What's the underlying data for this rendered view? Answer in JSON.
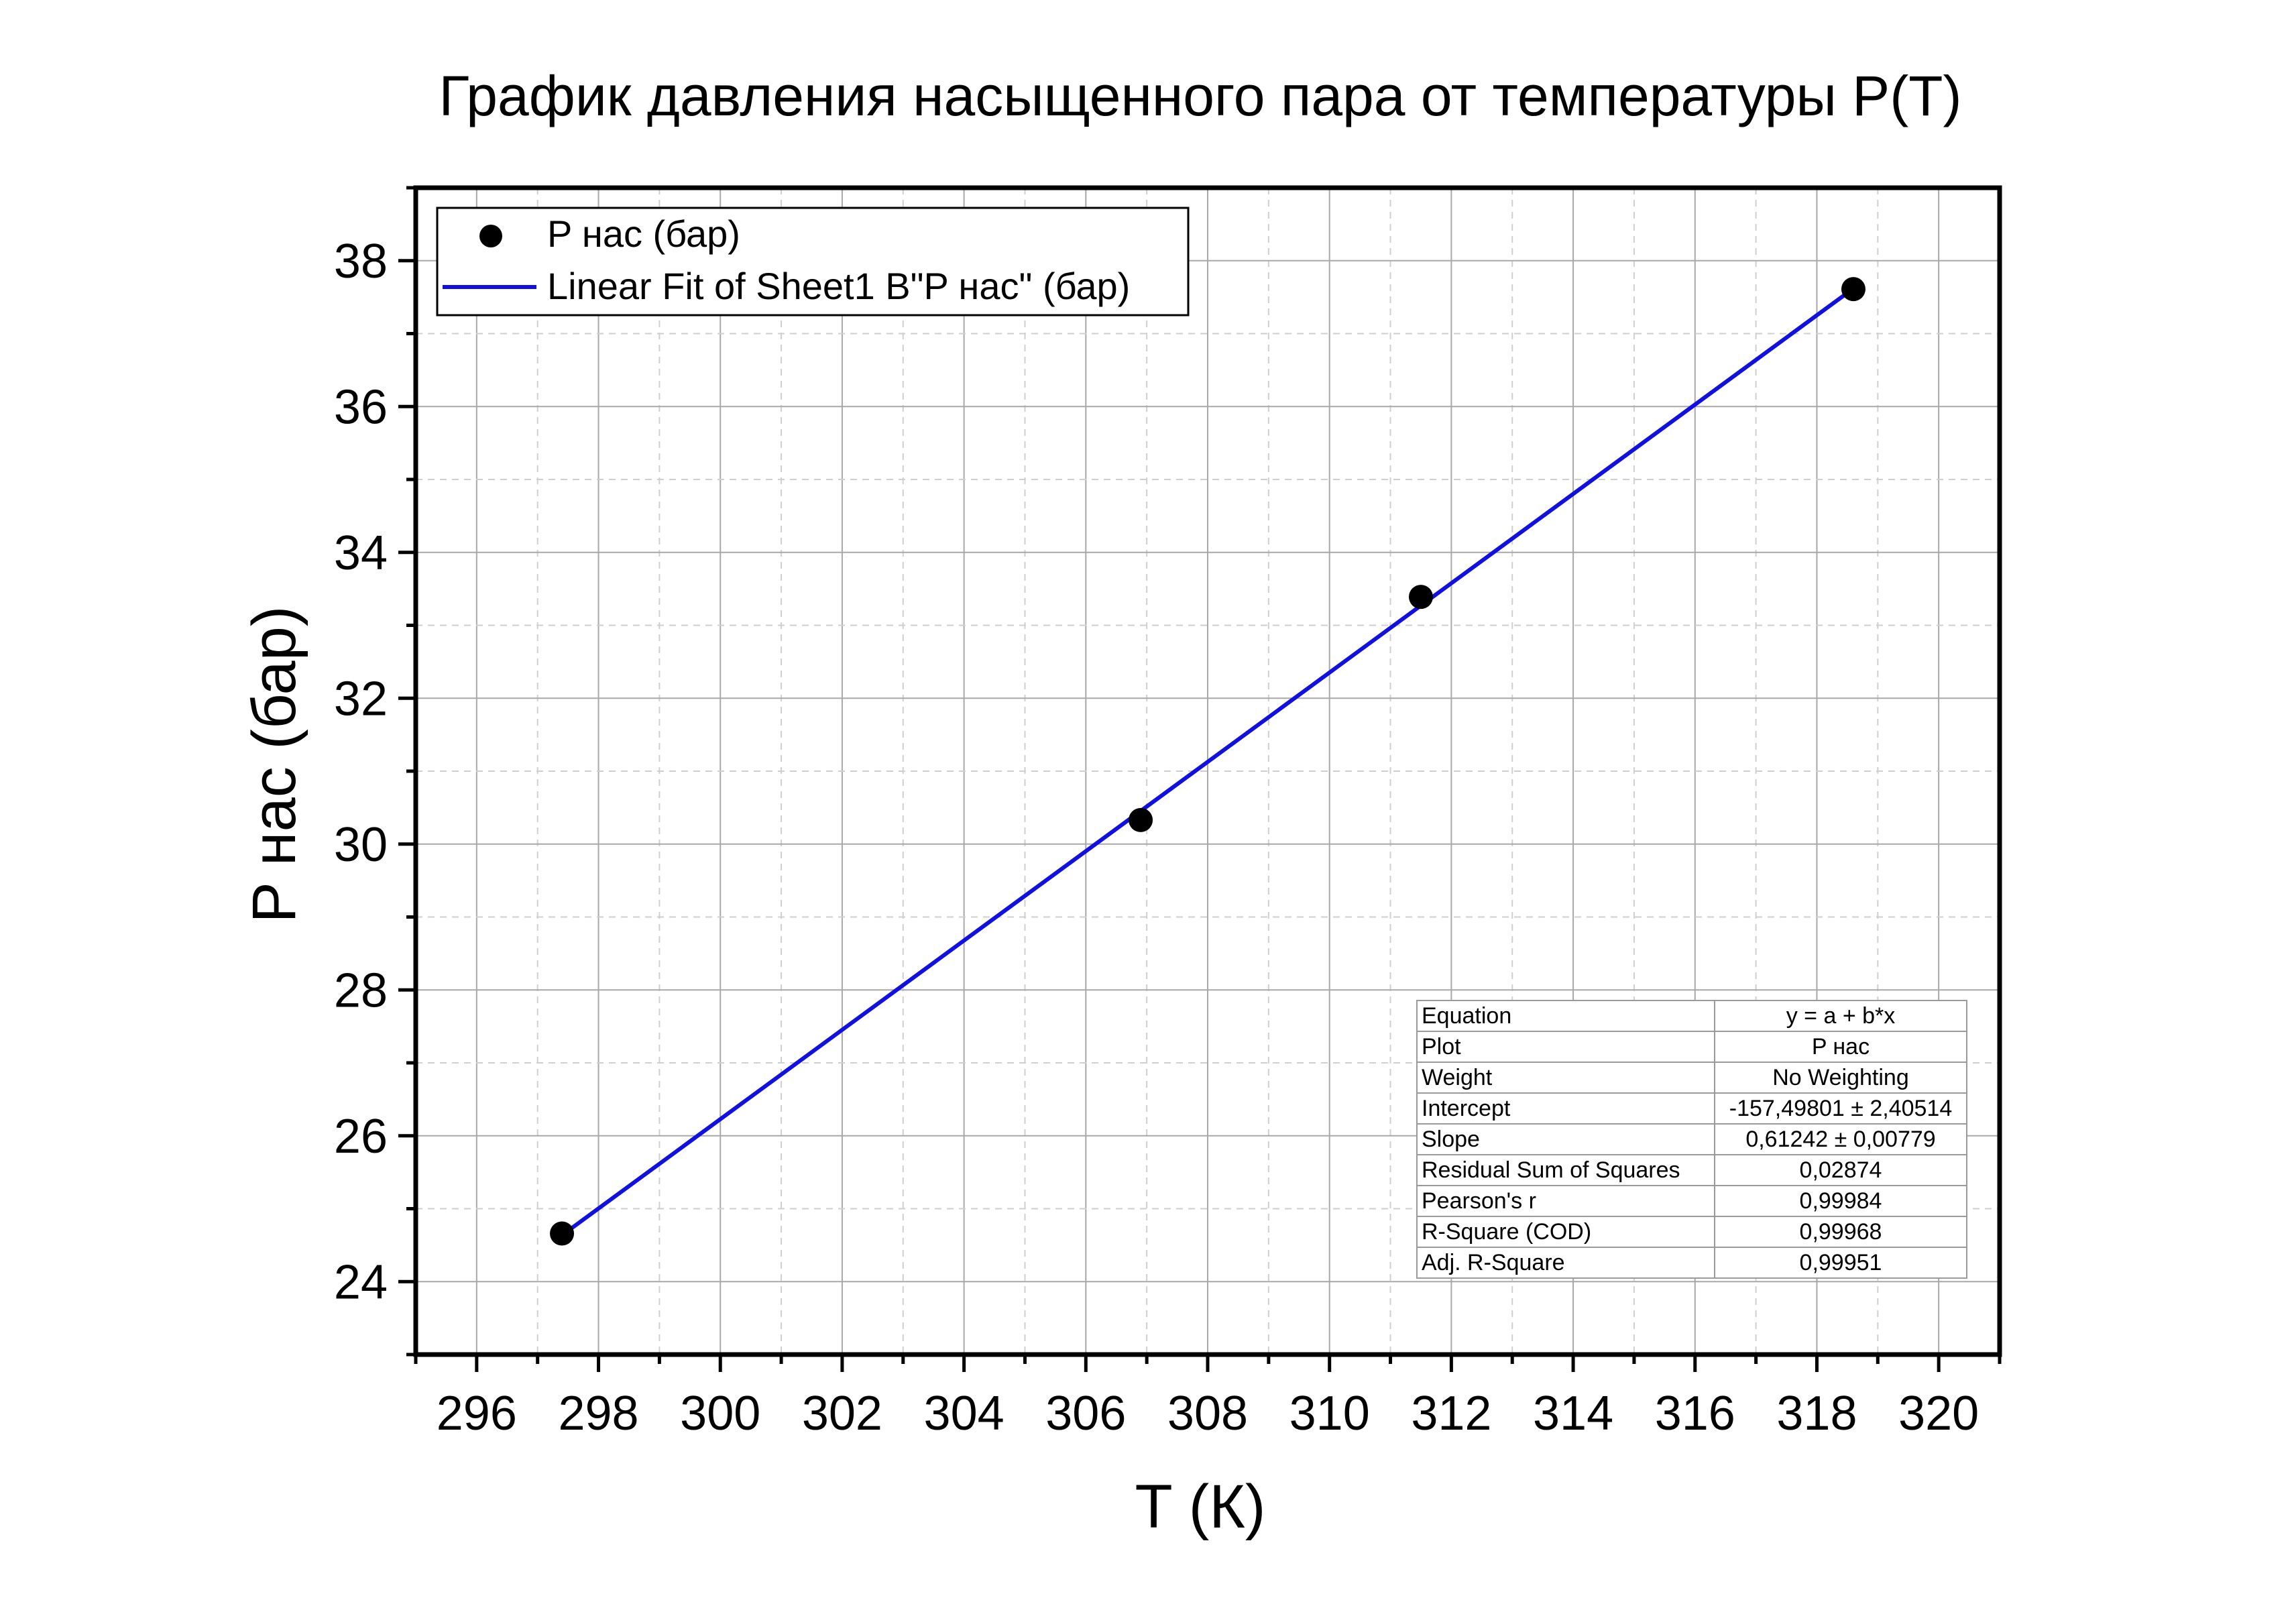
{
  "chart_data": {
    "type": "scatter",
    "title": "График давления насыщенного пара от температуры P(T)",
    "xlabel": "T (К)",
    "ylabel": "P нас (бар)",
    "xlim": [
      295,
      321
    ],
    "ylim": [
      23,
      39
    ],
    "x_major_ticks": [
      296,
      298,
      300,
      302,
      304,
      306,
      308,
      310,
      312,
      314,
      316,
      318,
      320
    ],
    "y_major_ticks": [
      24,
      26,
      28,
      30,
      32,
      34,
      36,
      38
    ],
    "grid": true,
    "legend_position": "top-left",
    "series": [
      {
        "name": "P нас (бар)",
        "kind": "scatter",
        "color": "#000000",
        "x": [
          297.4,
          306.9,
          311.5,
          318.6
        ],
        "y": [
          24.66,
          30.33,
          33.39,
          37.61
        ]
      },
      {
        "name": "Linear Fit of Sheet1 B\"P нас\" (бар)",
        "kind": "line",
        "color": "#1010e0",
        "intercept": -157.49801,
        "slope": 0.61242,
        "x_range": [
          297.4,
          318.6
        ]
      }
    ],
    "fit_table": [
      {
        "key": "Equation",
        "value": "y = a + b*x"
      },
      {
        "key": "Plot",
        "value": "P нас"
      },
      {
        "key": "Weight",
        "value": "No Weighting"
      },
      {
        "key": "Intercept",
        "value": "-157,49801 ± 2,40514"
      },
      {
        "key": "Slope",
        "value": "0,61242 ± 0,00779"
      },
      {
        "key": "Residual Sum of Squares",
        "value": "0,02874"
      },
      {
        "key": "Pearson's r",
        "value": "0,99984"
      },
      {
        "key": "R-Square (COD)",
        "value": "0,99968"
      },
      {
        "key": "Adj. R-Square",
        "value": "0,99951"
      }
    ]
  }
}
